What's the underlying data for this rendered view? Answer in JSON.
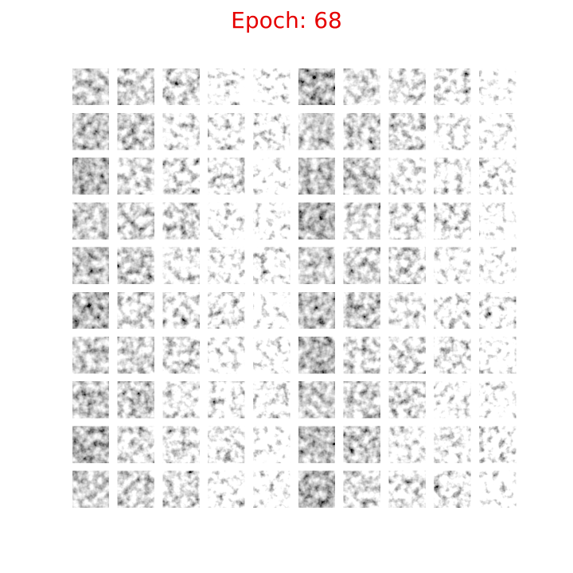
{
  "title": "Epoch: 68"
}
